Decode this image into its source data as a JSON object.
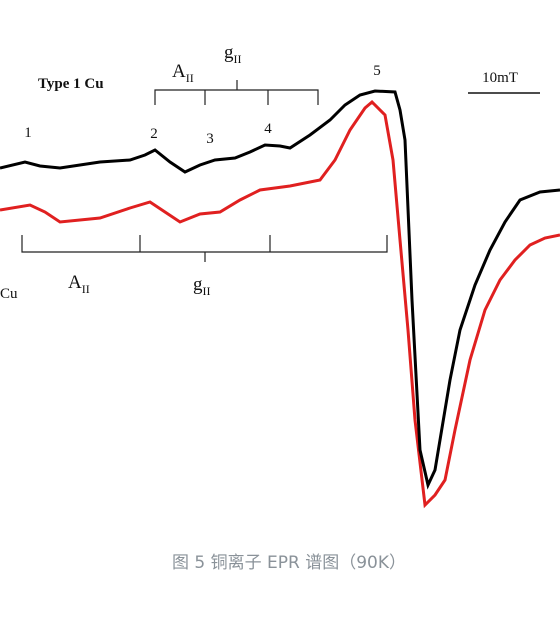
{
  "labels": {
    "type1": "Type 1 Cu",
    "scale": "10mT",
    "peaks": [
      "1",
      "2",
      "3",
      "4",
      "5"
    ],
    "type2": "Cu"
  },
  "upper_bracket": {
    "a": "A",
    "a_sub": "II",
    "g": "g",
    "g_sub": "II"
  },
  "lower_bracket": {
    "a": "A",
    "a_sub": "II",
    "g": "g",
    "g_sub": "II"
  },
  "caption": "图 5 铜离子 EPR 谱图（90K）"
}
